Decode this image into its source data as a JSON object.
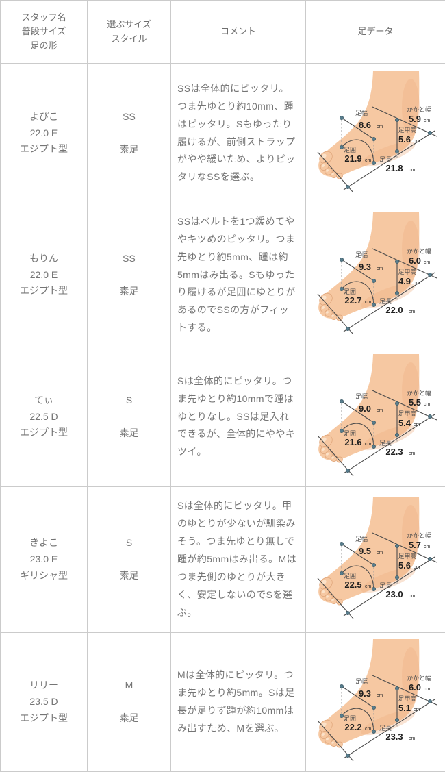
{
  "header": {
    "staff": "スタッフ名\n普段サイズ\n足の形",
    "size": "選ぶサイズ\nスタイル",
    "comment": "コメント",
    "foot": "足データ"
  },
  "foot_labels": {
    "width": "足幅",
    "heel": "かかと幅",
    "instep": "足甲高",
    "girth": "足囲",
    "length": "足長",
    "unit": "cm"
  },
  "colors": {
    "border": "#cbcbcb",
    "text": "#757575",
    "skin": "#f6c8a2",
    "skin_shade": "#efae82",
    "nail": "#fbe2c9",
    "dot": "#587d8c",
    "dim_line": "#4a4a4a",
    "dash_line": "#9a9a9a"
  },
  "rows": [
    {
      "staff": "よぴこ\n22.0 E\nエジプト型",
      "size": "SS",
      "style": "素足",
      "comment": "SSは全体的にピッタリ。つま先ゆとり約10mm、踵はピッタリ。Sもゆったり履けるが、前側ストラップがやや緩いため、よりピッタリなSSを選ぶ。",
      "foot": {
        "width": "8.6",
        "heel": "5.9",
        "instep": "5.6",
        "girth": "21.9",
        "length": "21.8"
      }
    },
    {
      "staff": "もりん\n22.0 E\nエジプト型",
      "size": "SS",
      "style": "素足",
      "comment": "SSはベルトを1つ緩めてややキツめのピッタリ。つま先ゆとり約5mm、踵は約5mmはみ出る。Sもゆったり履けるが足囲にゆとりがあるのでSSの方がフィットする。",
      "foot": {
        "width": "9.3",
        "heel": "6.0",
        "instep": "4.9",
        "girth": "22.7",
        "length": "22.0"
      }
    },
    {
      "staff": "てぃ\n22.5 D\nエジプト型",
      "size": "S",
      "style": "素足",
      "comment": "Sは全体的にピッタリ。つま先ゆとり約10mmで踵はゆとりなし。SSは足入れできるが、全体的にややキツイ。",
      "foot": {
        "width": "9.0",
        "heel": "5.5",
        "instep": "5.4",
        "girth": "21.6",
        "length": "22.3"
      }
    },
    {
      "staff": "きよこ\n23.0 E\nギリシャ型",
      "size": "S",
      "style": "素足",
      "comment": "Sは全体的にピッタリ。甲のゆとりが少ないが馴染みそう。つま先ゆとり無しで踵が約5mmはみ出る。Mはつま先側のゆとりが大きく、安定しないのでSを選ぶ。",
      "foot": {
        "width": "9.5",
        "heel": "5.7",
        "instep": "5.6",
        "girth": "22.5",
        "length": "23.0"
      }
    },
    {
      "staff": "リリー\n23.5 D\nエジプト型",
      "size": "M",
      "style": "素足",
      "comment": "Mは全体的にピッタリ。つま先ゆとり約5mm。Sは足長が足りず踵が約10mmはみ出すため、Mを選ぶ。",
      "foot": {
        "width": "9.3",
        "heel": "6.0",
        "instep": "5.1",
        "girth": "22.2",
        "length": "23.3"
      }
    }
  ]
}
